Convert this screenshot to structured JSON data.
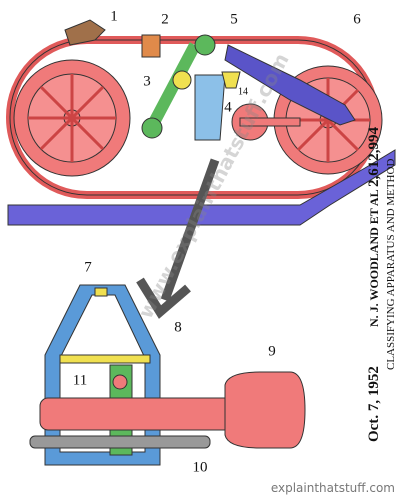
{
  "labels": [
    "1",
    "2",
    "3",
    "4",
    "5",
    "6",
    "7",
    "8",
    "9",
    "10",
    "11",
    "14"
  ],
  "patent": {
    "date": "Oct. 7, 1952",
    "inventor": "N. J. WOODLAND ET AL",
    "number": "2,612,994",
    "title": "CLASSIFYING APPARATUS AND METHOD"
  },
  "watermark": "www.explainthatstuff.com",
  "credit": "explainthatstuff.com"
}
